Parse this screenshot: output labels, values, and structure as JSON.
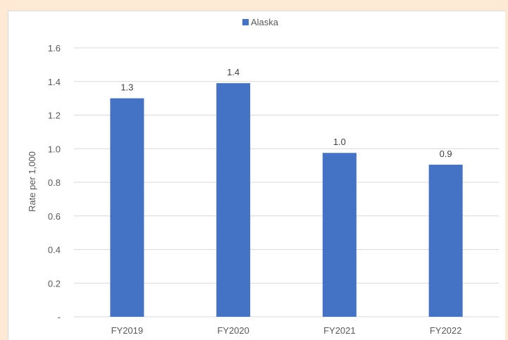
{
  "chart_data": {
    "type": "bar",
    "categories": [
      "FY2019",
      "FY2020",
      "FY2021",
      "FY2022"
    ],
    "series": [
      {
        "name": "Alaska",
        "values": [
          1.3,
          1.39,
          0.975,
          0.905
        ],
        "color": "#4472c4"
      }
    ],
    "data_labels": [
      "1.3",
      "1.4",
      "1.0",
      "0.9"
    ],
    "title": "",
    "xlabel": "",
    "ylabel": "Rate per 1,000",
    "ylim": [
      0,
      1.6
    ],
    "yticks": [
      0,
      0.2,
      0.4,
      0.6,
      0.8,
      1.0,
      1.2,
      1.4,
      1.6
    ],
    "ytick_labels": [
      "-",
      "0.2",
      "0.4",
      "0.6",
      "0.8",
      "1.0",
      "1.2",
      "1.4",
      "1.6"
    ],
    "grid": true,
    "legend": "top-center",
    "gridline_color": "#d9d9d9",
    "background_color": "#fde9d4"
  }
}
